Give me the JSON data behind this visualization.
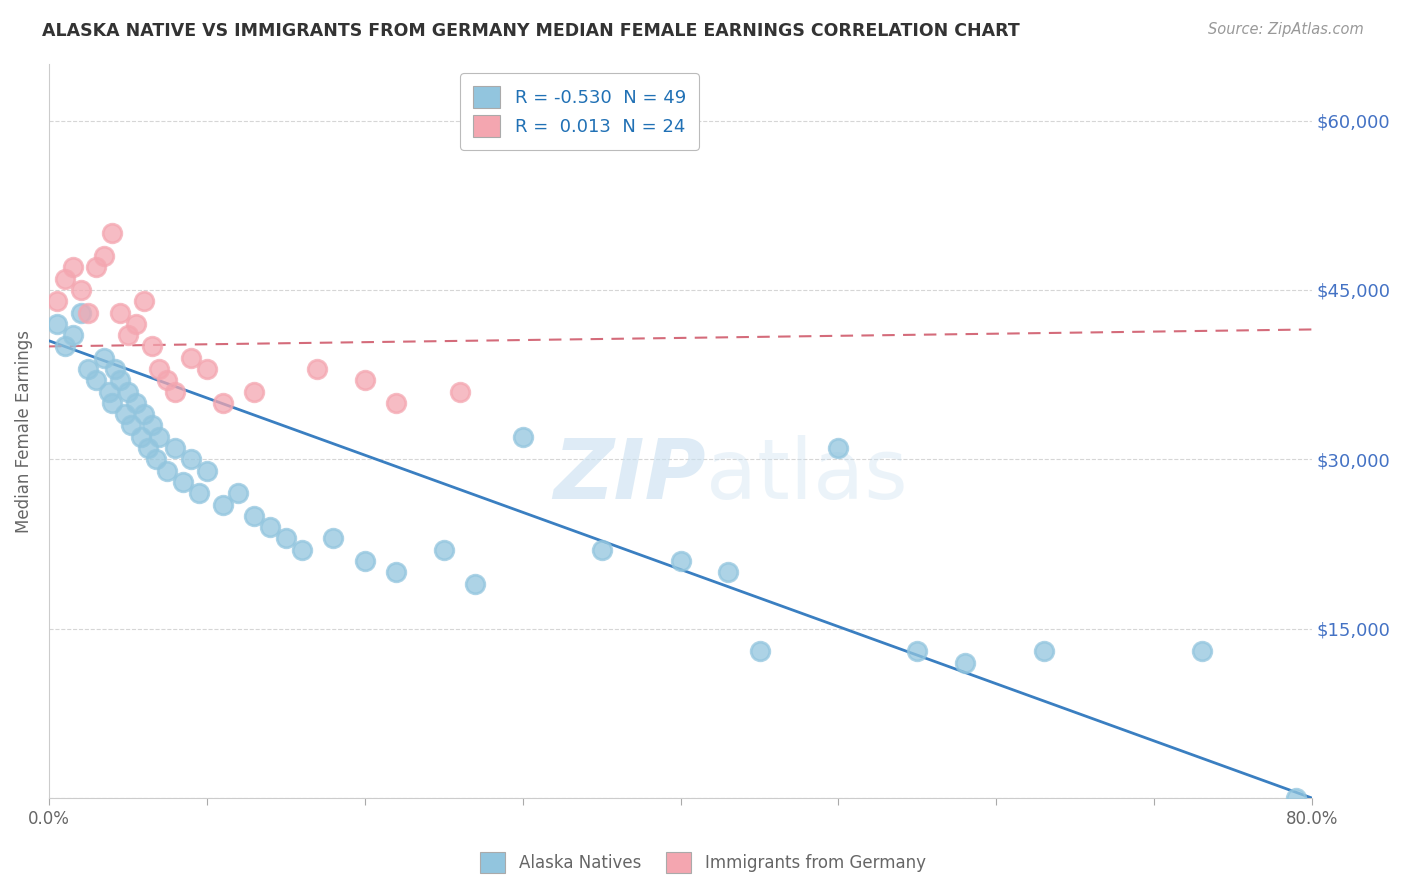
{
  "title": "ALASKA NATIVE VS IMMIGRANTS FROM GERMANY MEDIAN FEMALE EARNINGS CORRELATION CHART",
  "source": "Source: ZipAtlas.com",
  "ylabel": "Median Female Earnings",
  "xlim": [
    0.0,
    0.8
  ],
  "ylim": [
    0,
    65000
  ],
  "yticks": [
    0,
    15000,
    30000,
    45000,
    60000
  ],
  "ytick_labels_right": [
    "",
    "$15,000",
    "$30,000",
    "$45,000",
    "$60,000"
  ],
  "xticks": [
    0.0,
    0.1,
    0.2,
    0.3,
    0.4,
    0.5,
    0.6,
    0.7,
    0.8
  ],
  "xtick_labels": [
    "0.0%",
    "",
    "",
    "",
    "",
    "",
    "",
    "",
    "80.0%"
  ],
  "alaska_R": -0.53,
  "alaska_N": 49,
  "germany_R": 0.013,
  "germany_N": 24,
  "blue_scatter_color": "#92c5de",
  "pink_scatter_color": "#f4a6b0",
  "blue_line_color": "#3a7fc1",
  "pink_line_color": "#d46b7a",
  "watermark_color": "#c8dff0",
  "legend_label_1": "Alaska Natives",
  "legend_label_2": "Immigrants from Germany",
  "alaska_x": [
    0.005,
    0.01,
    0.015,
    0.02,
    0.025,
    0.03,
    0.035,
    0.038,
    0.04,
    0.042,
    0.045,
    0.048,
    0.05,
    0.052,
    0.055,
    0.058,
    0.06,
    0.063,
    0.065,
    0.068,
    0.07,
    0.075,
    0.08,
    0.085,
    0.09,
    0.095,
    0.1,
    0.11,
    0.12,
    0.13,
    0.14,
    0.15,
    0.16,
    0.18,
    0.2,
    0.22,
    0.25,
    0.27,
    0.3,
    0.35,
    0.4,
    0.43,
    0.45,
    0.5,
    0.55,
    0.58,
    0.63,
    0.73,
    0.79
  ],
  "alaska_y": [
    42000,
    40000,
    41000,
    43000,
    38000,
    37000,
    39000,
    36000,
    35000,
    38000,
    37000,
    34000,
    36000,
    33000,
    35000,
    32000,
    34000,
    31000,
    33000,
    30000,
    32000,
    29000,
    31000,
    28000,
    30000,
    27000,
    29000,
    26000,
    27000,
    25000,
    24000,
    23000,
    22000,
    23000,
    21000,
    20000,
    22000,
    19000,
    32000,
    22000,
    21000,
    20000,
    13000,
    31000,
    13000,
    12000,
    13000,
    13000,
    0
  ],
  "germany_x": [
    0.005,
    0.01,
    0.015,
    0.02,
    0.025,
    0.03,
    0.035,
    0.04,
    0.045,
    0.05,
    0.055,
    0.06,
    0.065,
    0.07,
    0.075,
    0.08,
    0.09,
    0.1,
    0.11,
    0.13,
    0.17,
    0.2,
    0.22,
    0.26
  ],
  "germany_y": [
    44000,
    46000,
    47000,
    45000,
    43000,
    47000,
    48000,
    50000,
    43000,
    41000,
    42000,
    44000,
    40000,
    38000,
    37000,
    36000,
    39000,
    38000,
    35000,
    36000,
    38000,
    37000,
    35000,
    36000
  ],
  "blue_trend_x0": 0.0,
  "blue_trend_y0": 40500,
  "blue_trend_x1": 0.8,
  "blue_trend_y1": 0,
  "pink_trend_x0": 0.0,
  "pink_trend_y0": 40000,
  "pink_trend_x1": 0.8,
  "pink_trend_y1": 41500
}
